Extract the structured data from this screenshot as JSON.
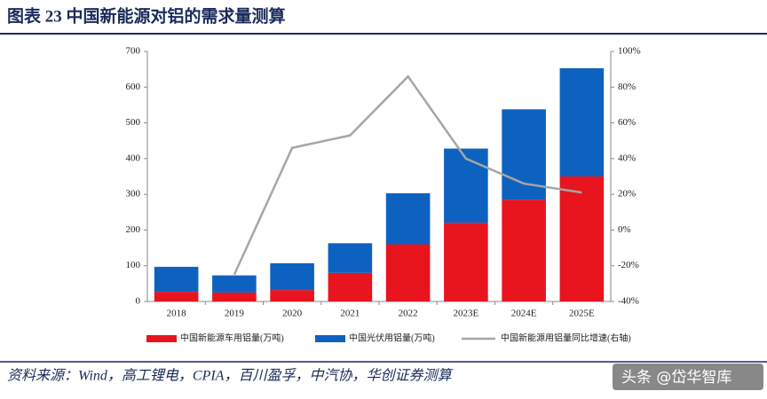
{
  "chart_data": {
    "type": "bar",
    "title": "图表 23   中国新能源对铝的需求量测算",
    "source": "资料来源：Wind，高工锂电，CPIA，百川盈孚，中汽协，华创证券测算",
    "watermark": "头条 @岱华智库",
    "categories": [
      "2018",
      "2019",
      "2020",
      "2021",
      "2022",
      "2023E",
      "2024E",
      "2025E"
    ],
    "series": [
      {
        "name": "中国新能源车用铝量(万吨)",
        "color": "#e8141e",
        "values": [
          27,
          25,
          32,
          80,
          160,
          220,
          285,
          350
        ]
      },
      {
        "name": "中国光伏用铝量(万吨)",
        "color": "#0d62c0",
        "values": [
          70,
          48,
          75,
          83,
          143,
          208,
          253,
          303
        ]
      },
      {
        "name": "中国新能源用铝量同比增速(右轴)",
        "color": "#a6a6a6",
        "type": "line",
        "axis": "y2",
        "values": [
          null,
          -25,
          46,
          53,
          86,
          40,
          26,
          21
        ]
      }
    ],
    "stacked": true,
    "ylim": [
      0,
      700
    ],
    "yticks": [
      0,
      100,
      200,
      300,
      400,
      500,
      600,
      700
    ],
    "y2lim": [
      -40,
      100
    ],
    "y2ticks": [
      {
        "value": -40,
        "label": "-40%"
      },
      {
        "value": -20,
        "label": "-20%"
      },
      {
        "value": 0,
        "label": "0%"
      },
      {
        "value": 20,
        "label": "20%"
      },
      {
        "value": 40,
        "label": "40%"
      },
      {
        "value": 60,
        "label": "60%"
      },
      {
        "value": 80,
        "label": "80%"
      },
      {
        "value": 100,
        "label": "100%"
      }
    ]
  }
}
